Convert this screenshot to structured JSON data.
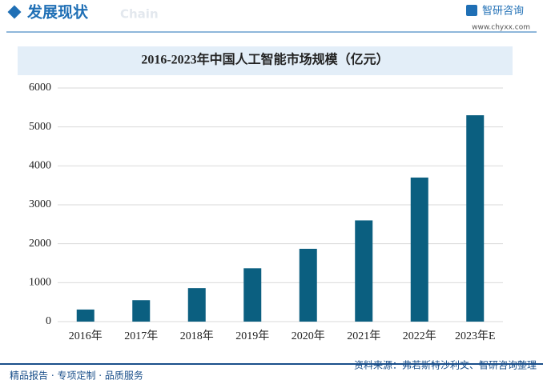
{
  "header": {
    "title": "发展现状",
    "watermark": "Chain",
    "logo": "智研咨询",
    "url": "www.chyxx.com"
  },
  "chart_data": {
    "type": "bar",
    "title": "2016-2023年中国人工智能市场规模（亿元）",
    "categories": [
      "2016年",
      "2017年",
      "2018年",
      "2019年",
      "2020年",
      "2021年",
      "2022年",
      "2023年E"
    ],
    "values": [
      310,
      550,
      860,
      1370,
      1870,
      2600,
      3700,
      5300
    ],
    "color": "#0b5f80",
    "ylim": [
      0,
      6000
    ],
    "yticks": [
      0,
      1000,
      2000,
      3000,
      4000,
      5000,
      6000
    ],
    "grid": true
  },
  "footer": {
    "left": "精品报告 · 专项定制 · 品质服务",
    "source": "资料来源：弗若斯特沙利文、智研咨询整理"
  }
}
